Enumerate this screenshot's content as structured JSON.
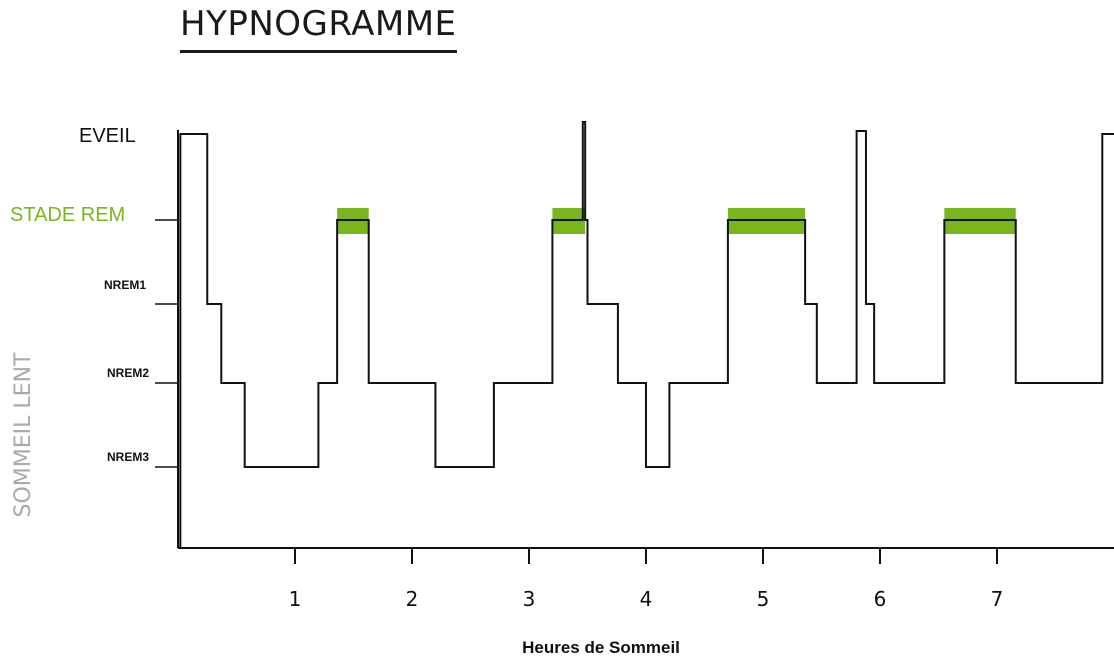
{
  "chart_data": {
    "type": "line",
    "title": "HYPNOGRAMME",
    "xlabel": "Heures de Sommeil",
    "ylabel": "SOMMEIL LENT",
    "x_ticks": [
      "1",
      "2",
      "3",
      "4",
      "5",
      "6",
      "7"
    ],
    "xlim": [
      0,
      8
    ],
    "stages": [
      {
        "key": "EVEIL",
        "label": "EVEIL",
        "level": 4
      },
      {
        "key": "REM",
        "label": "STADE REM",
        "level": 3
      },
      {
        "key": "NREM1",
        "label": "NREM1",
        "level": 2
      },
      {
        "key": "NREM2",
        "label": "NREM2",
        "level": 1
      },
      {
        "key": "NREM3",
        "label": "NREM3",
        "level": 0
      }
    ],
    "colors": {
      "rem": "#7ab51d",
      "line": "#111111",
      "axis": "#111111",
      "muted": "#aaaaaa"
    },
    "series": [
      {
        "steps": [
          [
            0.02,
            4
          ],
          [
            0.25,
            2
          ],
          [
            0.37,
            1
          ],
          [
            0.57,
            0
          ],
          [
            1.2,
            1
          ],
          [
            1.36,
            3
          ],
          [
            1.63,
            1
          ],
          [
            2.2,
            0
          ],
          [
            2.7,
            1
          ],
          [
            3.2,
            3
          ],
          [
            3.46,
            4.2
          ],
          [
            3.48,
            3
          ],
          [
            3.5,
            2
          ],
          [
            3.76,
            1
          ],
          [
            4.0,
            0
          ],
          [
            4.2,
            1
          ],
          [
            4.7,
            3
          ],
          [
            5.36,
            2
          ],
          [
            5.46,
            1
          ],
          [
            5.8,
            4.05
          ],
          [
            5.88,
            2
          ],
          [
            5.95,
            1
          ],
          [
            6.55,
            3
          ],
          [
            7.16,
            1
          ],
          [
            7.9,
            4
          ],
          [
            8.0,
            4
          ]
        ]
      }
    ],
    "rem_periods": [
      [
        1.36,
        1.63
      ],
      [
        3.2,
        3.48
      ],
      [
        4.7,
        5.36
      ],
      [
        6.55,
        7.16
      ]
    ]
  }
}
